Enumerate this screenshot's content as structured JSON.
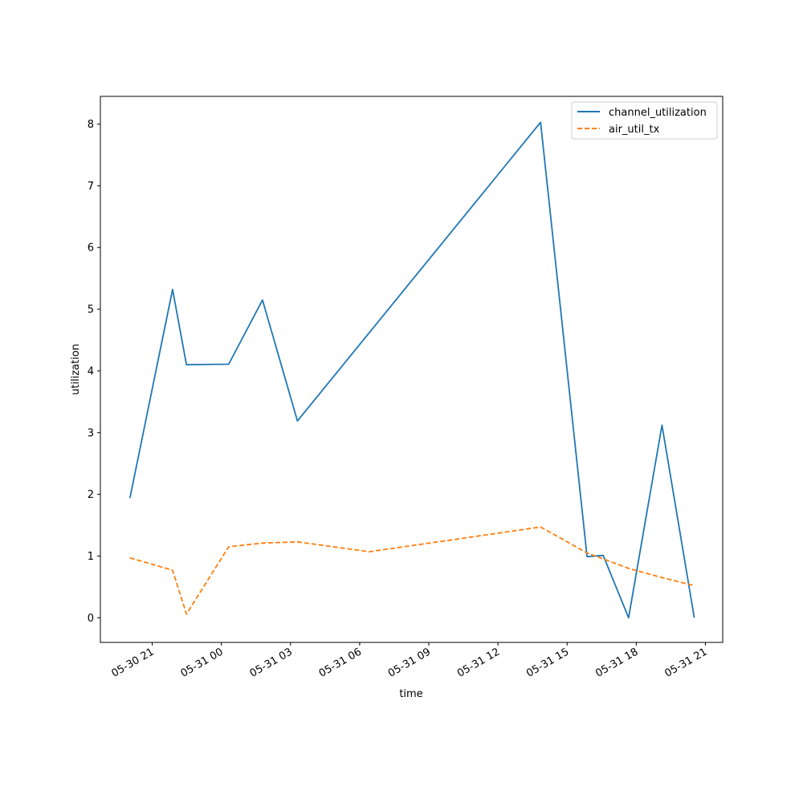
{
  "chart_data": {
    "type": "line",
    "xlabel": "time",
    "ylabel": "utilization",
    "x_axis": "datetime",
    "xlim": [
      "2024-05-30 18:45",
      "2024-05-31 21:45"
    ],
    "ylim": [
      -0.4,
      8.45
    ],
    "x_ticks": [
      {
        "value": "2024-05-30 21:00",
        "label": "05-30 21"
      },
      {
        "value": "2024-05-31 00:00",
        "label": "05-31 00"
      },
      {
        "value": "2024-05-31 03:00",
        "label": "05-31 03"
      },
      {
        "value": "2024-05-31 06:00",
        "label": "05-31 06"
      },
      {
        "value": "2024-05-31 09:00",
        "label": "05-31 09"
      },
      {
        "value": "2024-05-31 12:00",
        "label": "05-31 12"
      },
      {
        "value": "2024-05-31 15:00",
        "label": "05-31 15"
      },
      {
        "value": "2024-05-31 18:00",
        "label": "05-31 18"
      },
      {
        "value": "2024-05-31 21:00",
        "label": "05-31 21"
      }
    ],
    "y_ticks": [
      0,
      1,
      2,
      3,
      4,
      5,
      6,
      7,
      8
    ],
    "grid": false,
    "legend_position": "top-right",
    "series": [
      {
        "name": "channel_utilization",
        "color": "#1f77b4",
        "style": "solid",
        "points": [
          {
            "x": "2024-05-30 20:02",
            "y": 1.94
          },
          {
            "x": "2024-05-30 21:53",
            "y": 5.32
          },
          {
            "x": "2024-05-30 22:29",
            "y": 4.1
          },
          {
            "x": "2024-05-31 00:19",
            "y": 4.11
          },
          {
            "x": "2024-05-31 01:47",
            "y": 5.15
          },
          {
            "x": "2024-05-31 03:18",
            "y": 3.19
          },
          {
            "x": "2024-05-31 13:51",
            "y": 8.03
          },
          {
            "x": "2024-05-31 15:52",
            "y": 0.99
          },
          {
            "x": "2024-05-31 16:34",
            "y": 1.01
          },
          {
            "x": "2024-05-31 17:40",
            "y": 0.0
          },
          {
            "x": "2024-05-31 19:07",
            "y": 3.12
          },
          {
            "x": "2024-05-31 20:31",
            "y": 0.0
          }
        ]
      },
      {
        "name": "air_util_tx",
        "color": "#ff7f0e",
        "style": "dashed",
        "points": [
          {
            "x": "2024-05-30 20:02",
            "y": 0.97
          },
          {
            "x": "2024-05-30 21:53",
            "y": 0.77
          },
          {
            "x": "2024-05-30 22:29",
            "y": 0.06
          },
          {
            "x": "2024-05-31 00:19",
            "y": 1.15
          },
          {
            "x": "2024-05-31 01:47",
            "y": 1.21
          },
          {
            "x": "2024-05-31 03:18",
            "y": 1.23
          },
          {
            "x": "2024-05-31 06:25",
            "y": 1.07
          },
          {
            "x": "2024-05-31 13:51",
            "y": 1.47
          },
          {
            "x": "2024-05-31 15:52",
            "y": 1.05
          },
          {
            "x": "2024-05-31 17:40",
            "y": 0.8
          },
          {
            "x": "2024-05-31 19:07",
            "y": 0.65
          },
          {
            "x": "2024-05-31 20:31",
            "y": 0.52
          }
        ]
      }
    ]
  }
}
